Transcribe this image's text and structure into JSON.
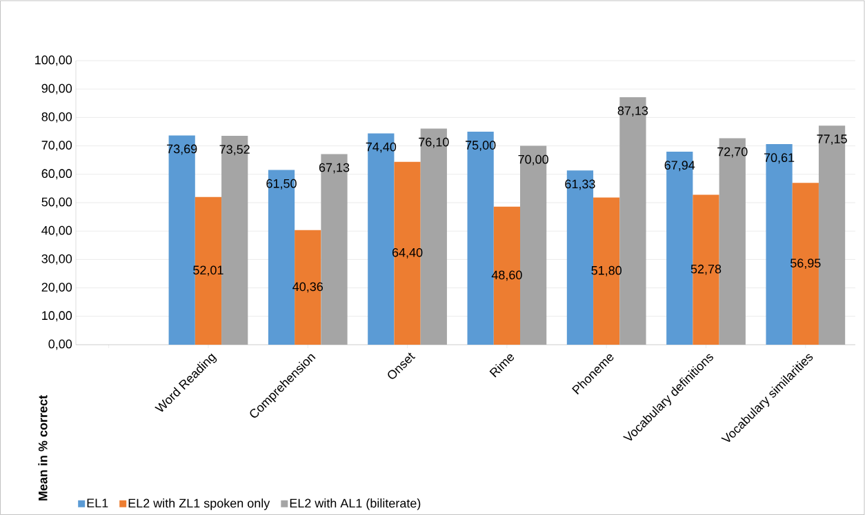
{
  "chart_data": {
    "type": "bar",
    "ylabel": "Mean in % correct",
    "categories": [
      null,
      "Word Reading",
      "Comprehension",
      "Onset",
      "Rime",
      "Phoneme",
      "Vocabulary definitions",
      "Vocabulary similarities"
    ],
    "series": [
      {
        "name": "EL1",
        "color": "#5b9bd5",
        "values": [
          null,
          73.69,
          61.5,
          74.4,
          75.0,
          61.33,
          67.94,
          70.61
        ],
        "value_labels": [
          null,
          "73,69",
          "61,50",
          "74,40",
          "75,00",
          "61,33",
          "67,94",
          "70,61"
        ]
      },
      {
        "name": "EL2 with ZL1 spoken only",
        "color": "#ed7d31",
        "values": [
          null,
          52.01,
          40.36,
          64.4,
          48.6,
          51.8,
          52.78,
          56.95
        ],
        "value_labels": [
          null,
          "52,01",
          "40,36",
          "64,40",
          "48,60",
          "51,80",
          "52,78",
          "56,95"
        ]
      },
      {
        "name": "EL2 with AL1 (biliterate)",
        "color": "#a5a5a5",
        "values": [
          null,
          73.52,
          67.13,
          76.1,
          70.0,
          87.13,
          72.7,
          77.15
        ],
        "value_labels": [
          null,
          "73,52",
          "67,13",
          "76,10",
          "70,00",
          "87,13",
          "72,70",
          "77,15"
        ]
      }
    ],
    "ylim": [
      0,
      100
    ],
    "yticks": [
      {
        "value": 0,
        "label": "0,00"
      },
      {
        "value": 10,
        "label": "10,00"
      },
      {
        "value": 20,
        "label": "20,00"
      },
      {
        "value": 30,
        "label": "30,00"
      },
      {
        "value": 40,
        "label": "40,00"
      },
      {
        "value": 50,
        "label": "50,00"
      },
      {
        "value": 60,
        "label": "60,00"
      },
      {
        "value": 70,
        "label": "70,00"
      },
      {
        "value": 80,
        "label": "80,00"
      },
      {
        "value": 90,
        "label": "90,00"
      },
      {
        "value": 100,
        "label": "100,00"
      }
    ],
    "grid": "y",
    "legend": "bottom"
  }
}
